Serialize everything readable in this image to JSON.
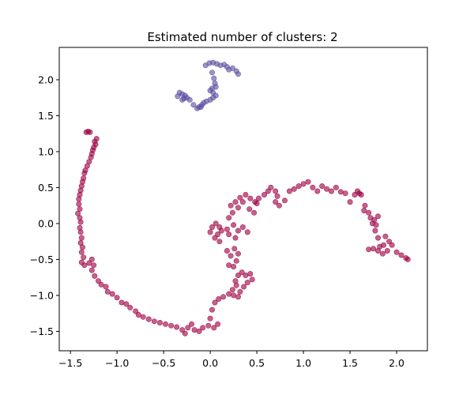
{
  "chart_data": {
    "type": "scatter",
    "title": "Estimated number of clusters: 2",
    "xlabel": "",
    "ylabel": "",
    "xlim": [
      -1.62,
      2.33
    ],
    "ylim": [
      -1.77,
      2.45
    ],
    "xticks": [
      -1.5,
      -1.0,
      -0.5,
      0.0,
      0.5,
      1.0,
      1.5,
      2.0
    ],
    "yticks": [
      -1.5,
      -1.0,
      -0.5,
      0.0,
      0.5,
      1.0,
      1.5,
      2.0
    ],
    "grid": false,
    "legend": "none",
    "series": [
      {
        "color": "#9e0142",
        "points": [
          [
            -1.31,
            1.28
          ],
          [
            -1.29,
            1.27
          ],
          [
            -1.33,
            1.27
          ],
          [
            -1.22,
            1.18
          ],
          [
            -1.24,
            1.14
          ],
          [
            -1.23,
            1.1
          ],
          [
            -1.25,
            1.06
          ],
          [
            -1.26,
            1.02
          ],
          [
            -1.27,
            0.97
          ],
          [
            -1.28,
            0.92
          ],
          [
            -1.3,
            0.86
          ],
          [
            -1.32,
            0.8
          ],
          [
            -1.34,
            0.74
          ],
          [
            -1.35,
            0.7
          ],
          [
            -1.36,
            0.63
          ],
          [
            -1.37,
            0.58
          ],
          [
            -1.38,
            0.52
          ],
          [
            -1.39,
            0.46
          ],
          [
            -1.4,
            0.4
          ],
          [
            -1.41,
            0.34
          ],
          [
            -1.41,
            0.27
          ],
          [
            -1.4,
            0.2
          ],
          [
            -1.42,
            0.14
          ],
          [
            -1.4,
            0.08
          ],
          [
            -1.39,
            0.02
          ],
          [
            -1.4,
            -0.06
          ],
          [
            -1.39,
            -0.12
          ],
          [
            -1.38,
            -0.2
          ],
          [
            -1.39,
            -0.27
          ],
          [
            -1.37,
            -0.33
          ],
          [
            -1.38,
            -0.4
          ],
          [
            -1.36,
            -0.47
          ],
          [
            -1.38,
            -0.54
          ],
          [
            -1.35,
            -0.58
          ],
          [
            -1.3,
            -0.55
          ],
          [
            -1.27,
            -0.5
          ],
          [
            -1.25,
            -0.58
          ],
          [
            -1.27,
            -0.65
          ],
          [
            -1.24,
            -0.73
          ],
          [
            -1.2,
            -0.8
          ],
          [
            -1.17,
            -0.85
          ],
          [
            -1.12,
            -0.88
          ],
          [
            -1.1,
            -0.95
          ],
          [
            -1.05,
            -0.98
          ],
          [
            -1.0,
            -1.03
          ],
          [
            -0.95,
            -1.1
          ],
          [
            -0.9,
            -1.12
          ],
          [
            -0.86,
            -1.17
          ],
          [
            -0.8,
            -1.22
          ],
          [
            -0.77,
            -1.27
          ],
          [
            -0.72,
            -1.3
          ],
          [
            -0.66,
            -1.33
          ],
          [
            -0.6,
            -1.36
          ],
          [
            -0.54,
            -1.38
          ],
          [
            -0.48,
            -1.4
          ],
          [
            -0.42,
            -1.42
          ],
          [
            -0.36,
            -1.44
          ],
          [
            -0.3,
            -1.48
          ],
          [
            -0.27,
            -1.53
          ],
          [
            -0.24,
            -1.45
          ],
          [
            -0.2,
            -1.4
          ],
          [
            -0.17,
            -1.48
          ],
          [
            -0.12,
            -1.5
          ],
          [
            -0.08,
            -1.45
          ],
          [
            -0.02,
            -1.42
          ],
          [
            0.04,
            -1.45
          ],
          [
            0.08,
            -1.4
          ],
          [
            0.0,
            -1.32
          ],
          [
            0.02,
            -1.2
          ],
          [
            0.05,
            -1.1
          ],
          [
            0.09,
            -1.05
          ],
          [
            0.14,
            -1.02
          ],
          [
            0.2,
            -0.98
          ],
          [
            0.24,
            -0.92
          ],
          [
            0.28,
            -0.86
          ],
          [
            0.27,
            -0.8
          ],
          [
            0.3,
            -0.72
          ],
          [
            0.34,
            -0.68
          ],
          [
            0.38,
            -0.72
          ],
          [
            0.43,
            -0.7
          ],
          [
            0.45,
            -0.78
          ],
          [
            0.4,
            -0.82
          ],
          [
            0.36,
            -0.88
          ],
          [
            0.32,
            -0.95
          ],
          [
            0.3,
            -1.02
          ],
          [
            0.25,
            -1.0
          ],
          [
            0.2,
            -0.58
          ],
          [
            0.25,
            -0.6
          ],
          [
            0.28,
            -0.52
          ],
          [
            0.22,
            -0.45
          ],
          [
            0.18,
            -0.38
          ],
          [
            0.26,
            -0.35
          ],
          [
            0.3,
            -0.42
          ],
          [
            0.1,
            -0.25
          ],
          [
            0.05,
            -0.2
          ],
          [
            0.0,
            -0.12
          ],
          [
            0.02,
            -0.05
          ],
          [
            0.06,
            0.0
          ],
          [
            0.1,
            -0.05
          ],
          [
            0.12,
            -0.1
          ],
          [
            0.08,
            -0.15
          ],
          [
            0.18,
            -0.08
          ],
          [
            0.2,
            -0.15
          ],
          [
            0.27,
            -0.2
          ],
          [
            0.3,
            -0.1
          ],
          [
            0.35,
            -0.05
          ],
          [
            0.4,
            -0.12
          ],
          [
            0.25,
            -0.02
          ],
          [
            0.2,
            0.08
          ],
          [
            0.24,
            0.15
          ],
          [
            0.22,
            0.25
          ],
          [
            0.27,
            0.3
          ],
          [
            0.3,
            0.22
          ],
          [
            0.35,
            0.3
          ],
          [
            0.32,
            0.36
          ],
          [
            0.38,
            0.4
          ],
          [
            0.43,
            0.35
          ],
          [
            0.48,
            0.3
          ],
          [
            0.42,
            0.2
          ],
          [
            0.47,
            0.15
          ],
          [
            0.5,
            0.28
          ],
          [
            0.52,
            0.35
          ],
          [
            0.58,
            0.4
          ],
          [
            0.62,
            0.45
          ],
          [
            0.65,
            0.5
          ],
          [
            0.7,
            0.45
          ],
          [
            0.72,
            0.38
          ],
          [
            0.7,
            0.3
          ],
          [
            0.74,
            0.25
          ],
          [
            0.8,
            0.32
          ],
          [
            0.85,
            0.45
          ],
          [
            0.9,
            0.48
          ],
          [
            0.95,
            0.52
          ],
          [
            1.0,
            0.55
          ],
          [
            1.05,
            0.58
          ],
          [
            1.1,
            0.5
          ],
          [
            1.15,
            0.45
          ],
          [
            1.2,
            0.52
          ],
          [
            1.25,
            0.48
          ],
          [
            1.3,
            0.45
          ],
          [
            1.35,
            0.5
          ],
          [
            1.4,
            0.44
          ],
          [
            1.45,
            0.42
          ],
          [
            1.5,
            0.3
          ],
          [
            1.55,
            0.4
          ],
          [
            1.58,
            0.45
          ],
          [
            1.62,
            0.4
          ],
          [
            1.66,
            0.25
          ],
          [
            1.7,
            0.15
          ],
          [
            1.72,
            0.08
          ],
          [
            1.76,
            0.05
          ],
          [
            1.78,
            -0.02
          ],
          [
            1.8,
            0.1
          ],
          [
            1.74,
            0.0
          ],
          [
            1.77,
            -0.1
          ],
          [
            1.8,
            -0.2
          ],
          [
            1.75,
            -0.35
          ],
          [
            1.8,
            -0.38
          ],
          [
            1.85,
            -0.42
          ],
          [
            1.9,
            -0.38
          ],
          [
            1.92,
            -0.25
          ],
          [
            1.88,
            -0.18
          ],
          [
            1.95,
            -0.3
          ],
          [
            2.0,
            -0.4
          ],
          [
            2.05,
            -0.44
          ],
          [
            2.1,
            -0.48
          ],
          [
            2.12,
            -0.5
          ],
          [
            1.82,
            -0.32
          ],
          [
            1.86,
            -0.3
          ],
          [
            1.7,
            -0.36
          ],
          [
            1.65,
            0.18
          ],
          [
            1.6,
            0.42
          ]
        ]
      },
      {
        "color": "#5e4fa2",
        "points": [
          [
            -0.05,
            2.2
          ],
          [
            -0.01,
            2.23
          ],
          [
            0.03,
            2.24
          ],
          [
            0.07,
            2.22
          ],
          [
            0.11,
            2.2
          ],
          [
            0.15,
            2.21
          ],
          [
            0.18,
            2.18
          ],
          [
            0.2,
            2.14
          ],
          [
            0.24,
            2.16
          ],
          [
            0.28,
            2.12
          ],
          [
            0.3,
            2.08
          ],
          [
            0.02,
            2.1
          ],
          [
            0.04,
            2.02
          ],
          [
            0.05,
            1.95
          ],
          [
            0.06,
            1.9
          ],
          [
            0.02,
            1.88
          ],
          [
            0.0,
            1.85
          ],
          [
            0.03,
            1.82
          ],
          [
            0.06,
            1.78
          ],
          [
            0.03,
            1.75
          ],
          [
            0.0,
            1.72
          ],
          [
            -0.04,
            1.7
          ],
          [
            -0.07,
            1.68
          ],
          [
            -0.09,
            1.65
          ],
          [
            -0.12,
            1.62
          ],
          [
            -0.14,
            1.6
          ],
          [
            -0.18,
            1.65
          ],
          [
            -0.22,
            1.72
          ],
          [
            -0.25,
            1.75
          ],
          [
            -0.27,
            1.78
          ],
          [
            -0.3,
            1.8
          ],
          [
            -0.33,
            1.82
          ],
          [
            -0.28,
            1.74
          ],
          [
            -0.35,
            1.77
          ],
          [
            -0.3,
            1.72
          ],
          [
            -0.1,
            1.62
          ]
        ]
      }
    ]
  }
}
